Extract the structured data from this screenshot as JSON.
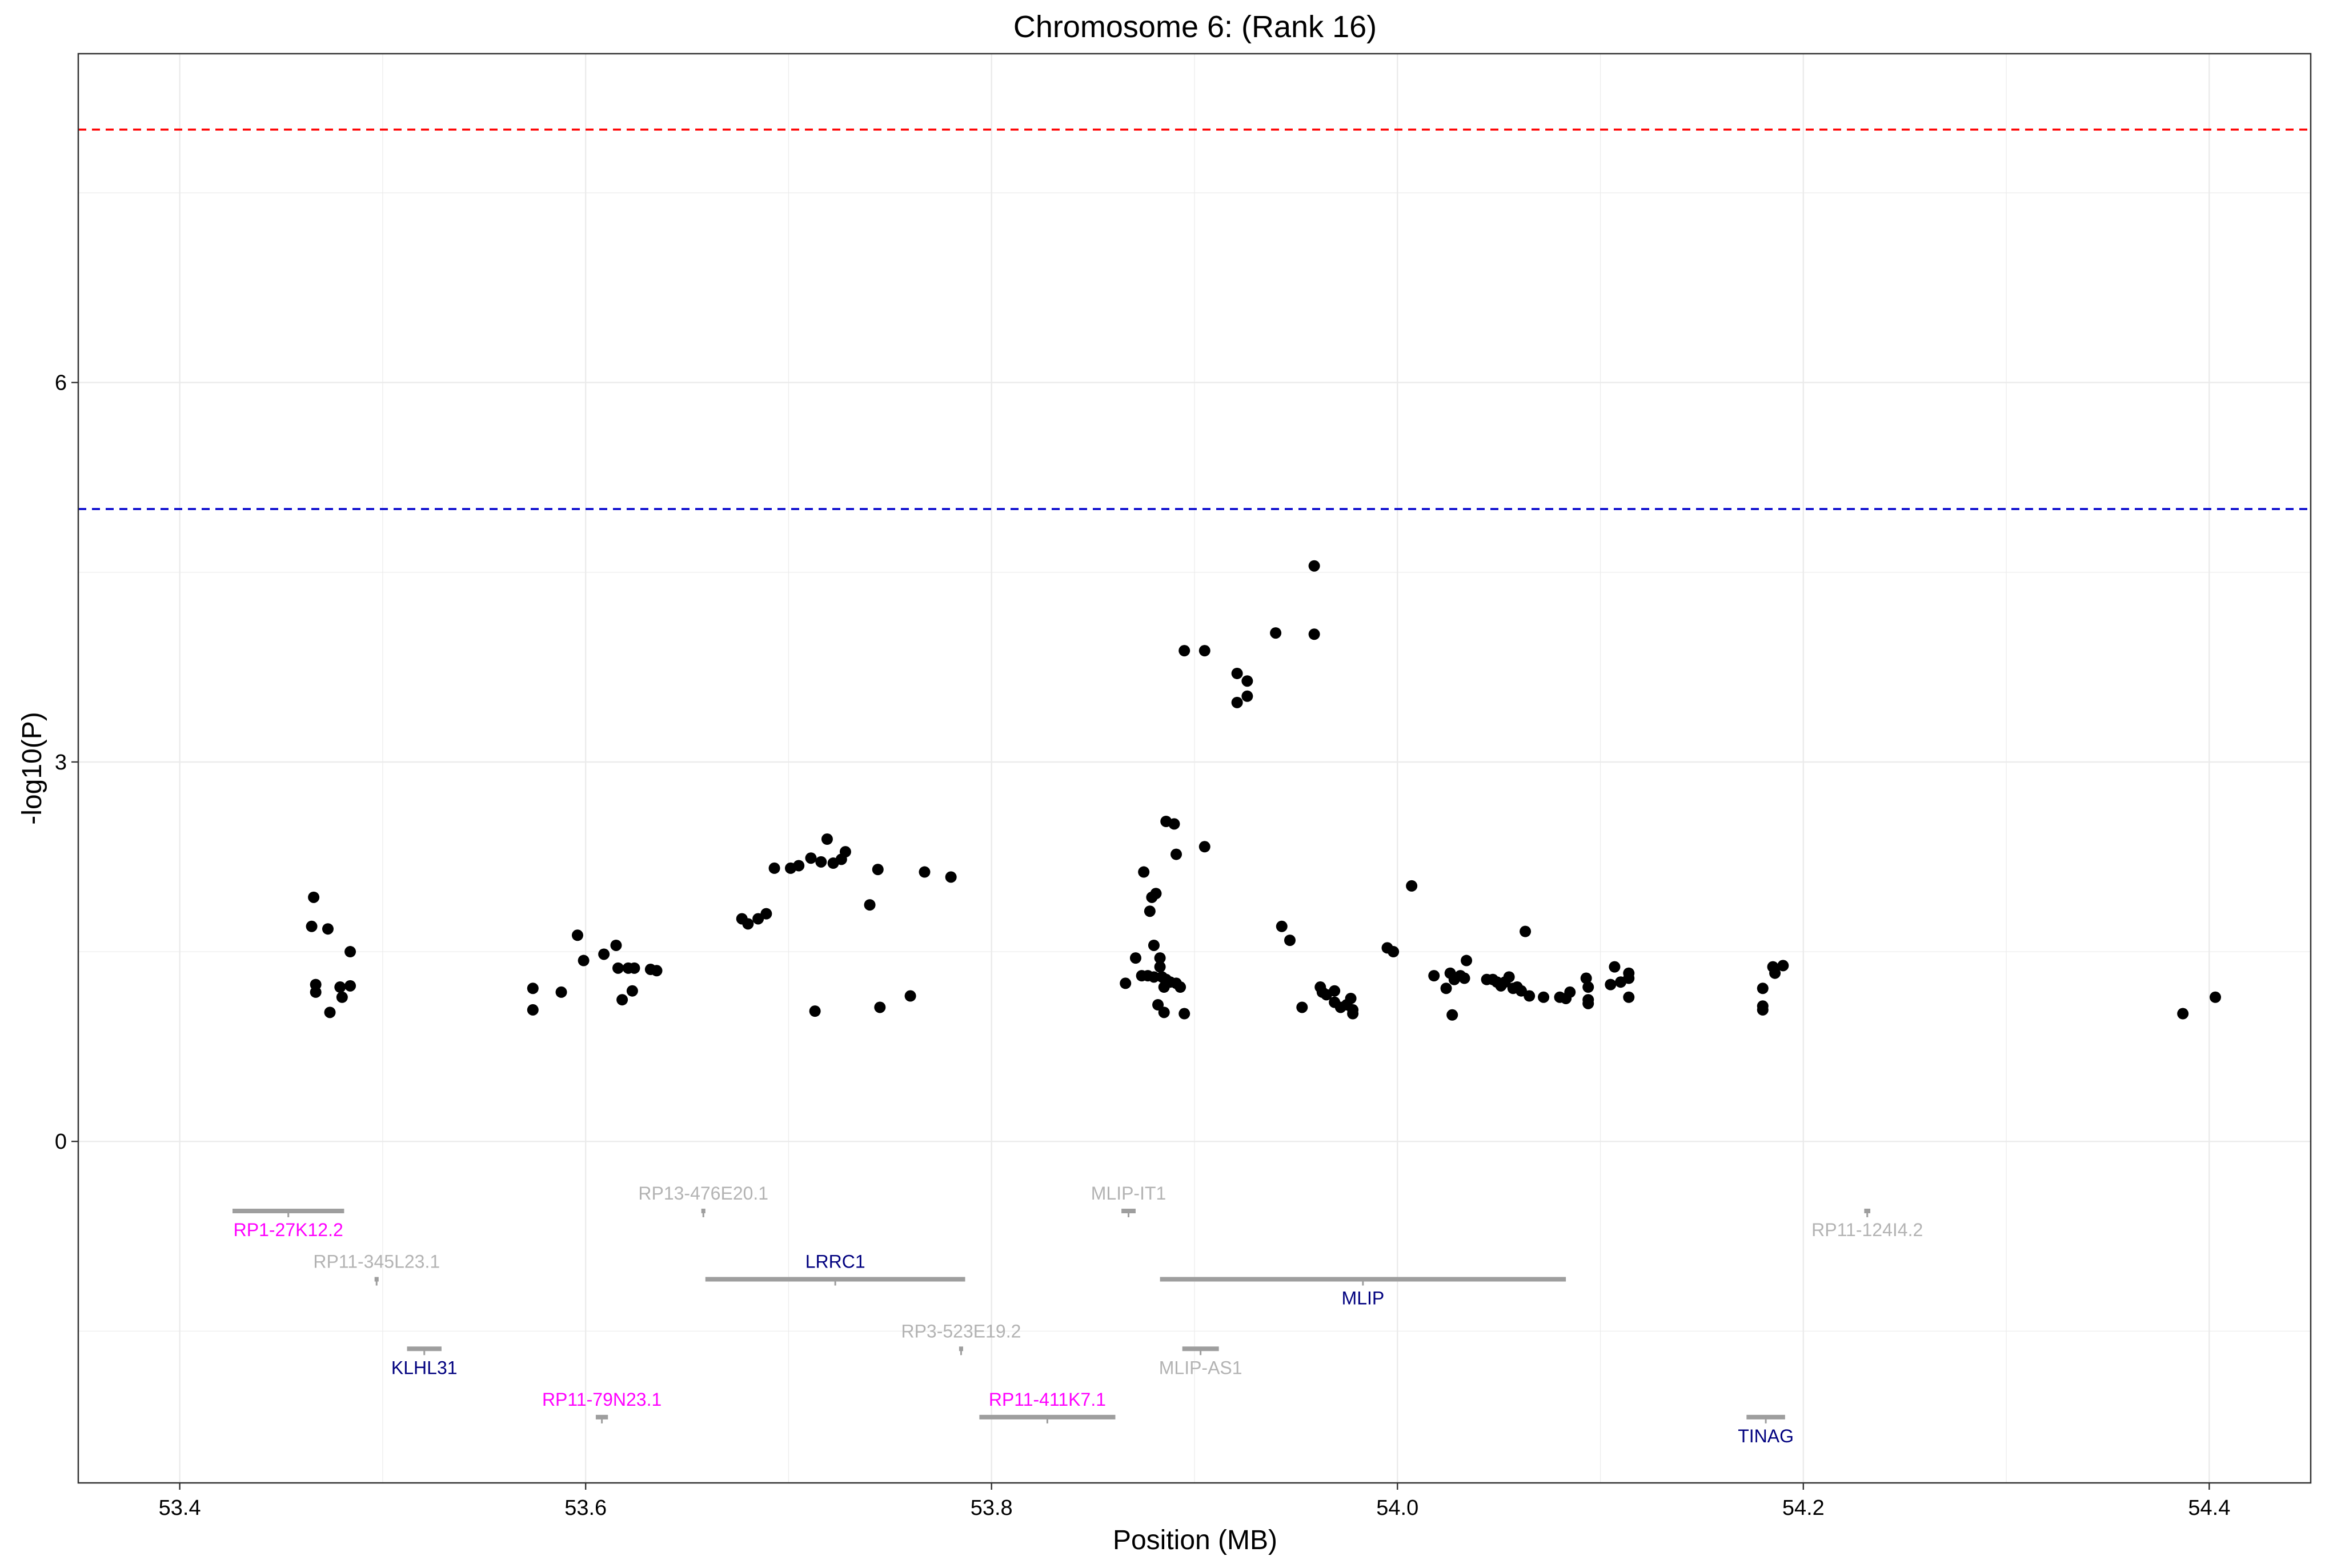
{
  "chart_data": {
    "type": "scatter",
    "title": "Chromosome 6: (Rank 16)",
    "xlabel": "Position (MB)",
    "ylabel": "-log10(P)",
    "xlim": [
      53.35,
      54.45
    ],
    "ylim": [
      -2.7,
      8.6
    ],
    "x_ticks": [
      53.4,
      53.6,
      53.8,
      54.0,
      54.2,
      54.4
    ],
    "x_tick_labels": [
      "53.4",
      "53.6",
      "53.8",
      "54.0",
      "54.2",
      "54.4"
    ],
    "y_ticks": [
      0,
      3,
      6
    ],
    "y_tick_labels": [
      "0",
      "3",
      "6"
    ],
    "grid": true,
    "reference_lines": [
      {
        "y": 8.0,
        "color": "#ff0000",
        "style": "dashed"
      },
      {
        "y": 5.0,
        "color": "#0000cc",
        "style": "dashed"
      }
    ],
    "points": [
      [
        53.466,
        1.93
      ],
      [
        53.465,
        1.7
      ],
      [
        53.473,
        1.68
      ],
      [
        53.484,
        1.5
      ],
      [
        53.467,
        1.24
      ],
      [
        53.467,
        1.18
      ],
      [
        53.479,
        1.22
      ],
      [
        53.484,
        1.23
      ],
      [
        53.48,
        1.14
      ],
      [
        53.474,
        1.02
      ],
      [
        53.574,
        1.21
      ],
      [
        53.574,
        1.04
      ],
      [
        53.588,
        1.18
      ],
      [
        53.596,
        1.63
      ],
      [
        53.599,
        1.43
      ],
      [
        53.609,
        1.48
      ],
      [
        53.615,
        1.55
      ],
      [
        53.616,
        1.37
      ],
      [
        53.621,
        1.37
      ],
      [
        53.624,
        1.37
      ],
      [
        53.618,
        1.12
      ],
      [
        53.623,
        1.19
      ],
      [
        53.632,
        1.36
      ],
      [
        53.635,
        1.35
      ],
      [
        53.677,
        1.76
      ],
      [
        53.68,
        1.72
      ],
      [
        53.685,
        1.76
      ],
      [
        53.689,
        1.8
      ],
      [
        53.693,
        2.16
      ],
      [
        53.701,
        2.16
      ],
      [
        53.705,
        2.18
      ],
      [
        53.711,
        2.24
      ],
      [
        53.716,
        2.21
      ],
      [
        53.719,
        2.39
      ],
      [
        53.722,
        2.2
      ],
      [
        53.726,
        2.23
      ],
      [
        53.728,
        2.29
      ],
      [
        53.74,
        1.87
      ],
      [
        53.744,
        2.15
      ],
      [
        53.767,
        2.13
      ],
      [
        53.78,
        2.09
      ],
      [
        53.713,
        1.03
      ],
      [
        53.745,
        1.06
      ],
      [
        53.76,
        1.15
      ],
      [
        53.866,
        1.25
      ],
      [
        53.871,
        1.45
      ],
      [
        53.874,
        1.31
      ],
      [
        53.877,
        1.31
      ],
      [
        53.88,
        1.3
      ],
      [
        53.875,
        2.13
      ],
      [
        53.878,
        1.82
      ],
      [
        53.879,
        1.93
      ],
      [
        53.881,
        1.96
      ],
      [
        53.88,
        1.55
      ],
      [
        53.883,
        1.45
      ],
      [
        53.883,
        1.38
      ],
      [
        53.884,
        1.3
      ],
      [
        53.886,
        1.28
      ],
      [
        53.888,
        1.26
      ],
      [
        53.885,
        1.22
      ],
      [
        53.891,
        1.25
      ],
      [
        53.893,
        1.22
      ],
      [
        53.882,
        1.08
      ],
      [
        53.885,
        1.02
      ],
      [
        53.895,
        1.01
      ],
      [
        53.886,
        2.53
      ],
      [
        53.89,
        2.51
      ],
      [
        53.891,
        2.27
      ],
      [
        53.905,
        2.33
      ],
      [
        53.895,
        3.88
      ],
      [
        53.905,
        3.88
      ],
      [
        53.921,
        3.7
      ],
      [
        53.926,
        3.64
      ],
      [
        53.921,
        3.47
      ],
      [
        53.926,
        3.52
      ],
      [
        53.94,
        4.02
      ],
      [
        53.959,
        4.01
      ],
      [
        53.959,
        4.55
      ],
      [
        53.943,
        1.7
      ],
      [
        53.947,
        1.59
      ],
      [
        53.953,
        1.06
      ],
      [
        53.962,
        1.22
      ],
      [
        53.963,
        1.18
      ],
      [
        53.965,
        1.16
      ],
      [
        53.969,
        1.19
      ],
      [
        53.969,
        1.1
      ],
      [
        53.972,
        1.06
      ],
      [
        53.975,
        1.08
      ],
      [
        53.977,
        1.13
      ],
      [
        53.978,
        1.04
      ],
      [
        53.978,
        1.01
      ],
      [
        53.995,
        1.53
      ],
      [
        53.998,
        1.5
      ],
      [
        54.007,
        2.02
      ],
      [
        54.018,
        1.31
      ],
      [
        54.024,
        1.21
      ],
      [
        54.026,
        1.33
      ],
      [
        54.028,
        1.28
      ],
      [
        54.031,
        1.31
      ],
      [
        54.033,
        1.29
      ],
      [
        54.034,
        1.43
      ],
      [
        54.027,
        1.0
      ],
      [
        54.044,
        1.28
      ],
      [
        54.047,
        1.28
      ],
      [
        54.049,
        1.26
      ],
      [
        54.051,
        1.23
      ],
      [
        54.053,
        1.26
      ],
      [
        54.055,
        1.3
      ],
      [
        54.057,
        1.21
      ],
      [
        54.059,
        1.22
      ],
      [
        54.061,
        1.19
      ],
      [
        54.063,
        1.66
      ],
      [
        54.065,
        1.15
      ],
      [
        54.072,
        1.14
      ],
      [
        54.08,
        1.14
      ],
      [
        54.083,
        1.13
      ],
      [
        54.085,
        1.18
      ],
      [
        54.093,
        1.29
      ],
      [
        54.094,
        1.22
      ],
      [
        54.094,
        1.12
      ],
      [
        54.094,
        1.09
      ],
      [
        54.105,
        1.24
      ],
      [
        54.107,
        1.38
      ],
      [
        54.11,
        1.26
      ],
      [
        54.114,
        1.33
      ],
      [
        54.114,
        1.29
      ],
      [
        54.114,
        1.14
      ],
      [
        54.18,
        1.21
      ],
      [
        54.18,
        1.07
      ],
      [
        54.18,
        1.04
      ],
      [
        54.185,
        1.38
      ],
      [
        54.186,
        1.33
      ],
      [
        54.19,
        1.39
      ],
      [
        54.387,
        1.01
      ],
      [
        54.403,
        1.14
      ]
    ],
    "genes": [
      {
        "name": "RP1-27K12.2",
        "start": 53.426,
        "end": 53.481,
        "y": -0.55,
        "label_pos": "below",
        "color": "#ff00ff"
      },
      {
        "name": "RP13-476E20.1",
        "start": 53.657,
        "end": 53.659,
        "y": -0.55,
        "label_pos": "above",
        "color": "#b3b3b3"
      },
      {
        "name": "MLIP-IT1",
        "start": 53.864,
        "end": 53.871,
        "y": -0.55,
        "label_pos": "above",
        "color": "#b3b3b3"
      },
      {
        "name": "RP11-124I4.2",
        "start": 54.23,
        "end": 54.233,
        "y": -0.55,
        "label_pos": "below",
        "color": "#b3b3b3"
      },
      {
        "name": "RP11-345L23.1",
        "start": 53.496,
        "end": 53.498,
        "y": -1.09,
        "label_pos": "above",
        "color": "#b3b3b3"
      },
      {
        "name": "LRRC1",
        "start": 53.659,
        "end": 53.787,
        "y": -1.09,
        "label_pos": "above",
        "color": "#00007f"
      },
      {
        "name": "MLIP",
        "start": 53.883,
        "end": 54.083,
        "y": -1.09,
        "label_pos": "below",
        "color": "#00007f"
      },
      {
        "name": "KLHL31",
        "start": 53.512,
        "end": 53.529,
        "y": -1.64,
        "label_pos": "below",
        "color": "#00007f"
      },
      {
        "name": "RP3-523E19.2",
        "start": 53.784,
        "end": 53.786,
        "y": -1.64,
        "label_pos": "above",
        "color": "#b3b3b3"
      },
      {
        "name": "MLIP-AS1",
        "start": 53.894,
        "end": 53.912,
        "y": -1.64,
        "label_pos": "below",
        "color": "#b3b3b3"
      },
      {
        "name": "RP11-79N23.1",
        "start": 53.605,
        "end": 53.611,
        "y": -2.18,
        "label_pos": "above",
        "color": "#ff00ff"
      },
      {
        "name": "RP11-411K7.1",
        "start": 53.794,
        "end": 53.861,
        "y": -2.18,
        "label_pos": "above",
        "color": "#ff00ff"
      },
      {
        "name": "TINAG",
        "start": 54.172,
        "end": 54.191,
        "y": -2.18,
        "label_pos": "below",
        "color": "#00007f"
      }
    ]
  },
  "colors": {
    "points": "#000000",
    "gene_bar": "#9e9e9e",
    "grid": "#ebebeb",
    "panel_border": "#333333"
  }
}
